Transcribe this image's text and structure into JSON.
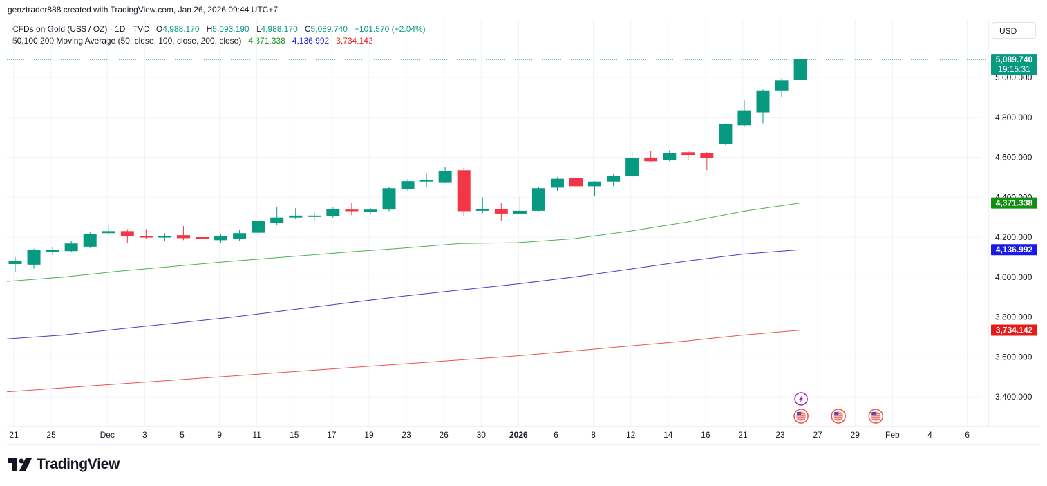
{
  "header": {
    "created_line": "genztrader888 created with TradingView.com, Jan 26, 2026 09:44 UTC+7"
  },
  "legend": {
    "symbol": "CFDs on Gold (US$ / OZ) · 1D · TVC",
    "o_label": "O",
    "o_value": "4,988.170",
    "h_label": "H",
    "h_value": "5,093.190",
    "l_label": "L",
    "l_value": "4,988.170",
    "c_label": "C",
    "c_value": "5,089.740",
    "change": "+101.570 (+2.04%)",
    "ma_label": "50,100,200 Moving Average (50, close, 100, close, 200, close)",
    "ma50_value": "4,371.338",
    "ma100_value": "4,136.992",
    "ma200_value": "3,734.142"
  },
  "currency": "USD",
  "brand": "TradingView",
  "colors": {
    "up": "#089981",
    "down": "#f23645",
    "ma50": "#4caf50",
    "ma100": "#3f3fbf",
    "ma200": "#e8534a",
    "ma50_label": "#138f13",
    "ma100_label": "#1a1ae6",
    "ma200_label": "#e81b1b"
  },
  "chart_data": {
    "type": "candlestick",
    "ylim": [
      3260,
      5200
    ],
    "y_ticks": [
      "3,400.000",
      "3,600.000",
      "3,800.000",
      "4,000.000",
      "4,200.000",
      "4,400.000",
      "4,600.000",
      "4,800.000",
      "5,000.000"
    ],
    "x_ticks": [
      "21",
      "25",
      "Dec",
      "3",
      "5",
      "9",
      "11",
      "15",
      "17",
      "19",
      "23",
      "26",
      "30",
      "2026",
      "6",
      "8",
      "12",
      "14",
      "16",
      "21",
      "23",
      "27",
      "29",
      "Feb",
      "4",
      "6"
    ],
    "x_tick_bold": [
      "2026"
    ],
    "grid": true,
    "candles": [
      {
        "o": 4065,
        "h": 4100,
        "l": 4025,
        "c": 4080
      },
      {
        "o": 4062,
        "h": 4142,
        "l": 4042,
        "c": 4135
      },
      {
        "o": 4125,
        "h": 4150,
        "l": 4110,
        "c": 4135
      },
      {
        "o": 4130,
        "h": 4180,
        "l": 4125,
        "c": 4168
      },
      {
        "o": 4152,
        "h": 4225,
        "l": 4145,
        "c": 4215
      },
      {
        "o": 4220,
        "h": 4260,
        "l": 4210,
        "c": 4230
      },
      {
        "o": 4230,
        "h": 4240,
        "l": 4170,
        "c": 4205
      },
      {
        "o": 4205,
        "h": 4240,
        "l": 4190,
        "c": 4198
      },
      {
        "o": 4198,
        "h": 4220,
        "l": 4180,
        "c": 4205
      },
      {
        "o": 4210,
        "h": 4255,
        "l": 4185,
        "c": 4195
      },
      {
        "o": 4200,
        "h": 4220,
        "l": 4180,
        "c": 4190
      },
      {
        "o": 4185,
        "h": 4215,
        "l": 4170,
        "c": 4205
      },
      {
        "o": 4192,
        "h": 4235,
        "l": 4180,
        "c": 4220
      },
      {
        "o": 4222,
        "h": 4285,
        "l": 4210,
        "c": 4282
      },
      {
        "o": 4272,
        "h": 4350,
        "l": 4260,
        "c": 4298
      },
      {
        "o": 4298,
        "h": 4345,
        "l": 4290,
        "c": 4308
      },
      {
        "o": 4305,
        "h": 4330,
        "l": 4280,
        "c": 4308
      },
      {
        "o": 4305,
        "h": 4348,
        "l": 4295,
        "c": 4342
      },
      {
        "o": 4338,
        "h": 4370,
        "l": 4310,
        "c": 4330
      },
      {
        "o": 4328,
        "h": 4345,
        "l": 4315,
        "c": 4338
      },
      {
        "o": 4338,
        "h": 4450,
        "l": 4330,
        "c": 4445
      },
      {
        "o": 4440,
        "h": 4490,
        "l": 4430,
        "c": 4480
      },
      {
        "o": 4480,
        "h": 4520,
        "l": 4450,
        "c": 4485
      },
      {
        "o": 4475,
        "h": 4550,
        "l": 4470,
        "c": 4530
      },
      {
        "o": 4535,
        "h": 4548,
        "l": 4305,
        "c": 4330
      },
      {
        "o": 4332,
        "h": 4400,
        "l": 4320,
        "c": 4340
      },
      {
        "o": 4340,
        "h": 4370,
        "l": 4280,
        "c": 4318
      },
      {
        "o": 4318,
        "h": 4400,
        "l": 4315,
        "c": 4332
      },
      {
        "o": 4332,
        "h": 4450,
        "l": 4330,
        "c": 4445
      },
      {
        "o": 4448,
        "h": 4500,
        "l": 4430,
        "c": 4492
      },
      {
        "o": 4495,
        "h": 4500,
        "l": 4430,
        "c": 4455
      },
      {
        "o": 4455,
        "h": 4480,
        "l": 4405,
        "c": 4478
      },
      {
        "o": 4478,
        "h": 4515,
        "l": 4455,
        "c": 4508
      },
      {
        "o": 4508,
        "h": 4625,
        "l": 4500,
        "c": 4598
      },
      {
        "o": 4595,
        "h": 4630,
        "l": 4575,
        "c": 4580
      },
      {
        "o": 4585,
        "h": 4635,
        "l": 4580,
        "c": 4622
      },
      {
        "o": 4625,
        "h": 4630,
        "l": 4585,
        "c": 4612
      },
      {
        "o": 4620,
        "h": 4625,
        "l": 4535,
        "c": 4595
      },
      {
        "o": 4665,
        "h": 4770,
        "l": 4660,
        "c": 4765
      },
      {
        "o": 4760,
        "h": 4885,
        "l": 4755,
        "c": 4835
      },
      {
        "o": 4825,
        "h": 4940,
        "l": 4770,
        "c": 4935
      },
      {
        "o": 4935,
        "h": 4995,
        "l": 4900,
        "c": 4985
      },
      {
        "o": 4988,
        "h": 5093,
        "l": 4988,
        "c": 5090
      }
    ],
    "ma_series": [
      {
        "label": "4,371.338",
        "last": 4371,
        "values": [
          3978,
          4000,
          4030,
          4055,
          4080,
          4102,
          4125,
          4145,
          4168,
          4172,
          4192,
          4230,
          4275,
          4330,
          4371
        ]
      },
      {
        "label": "4,136.992",
        "last": 4137,
        "values": [
          3690,
          3710,
          3740,
          3770,
          3800,
          3835,
          3870,
          3905,
          3935,
          3965,
          4000,
          4040,
          4080,
          4115,
          4137
        ]
      },
      {
        "label": "3,734.142",
        "last": 3734,
        "values": [
          3425,
          3445,
          3465,
          3485,
          3505,
          3525,
          3545,
          3565,
          3585,
          3605,
          3630,
          3655,
          3680,
          3710,
          3734
        ]
      }
    ],
    "last_price": {
      "value": 5089.74,
      "label": "5,089.740",
      "countdown": "19:15:31"
    },
    "events": [
      "bolt-event",
      "us-flag-event",
      "us-flag-event",
      "us-flag-event"
    ]
  }
}
